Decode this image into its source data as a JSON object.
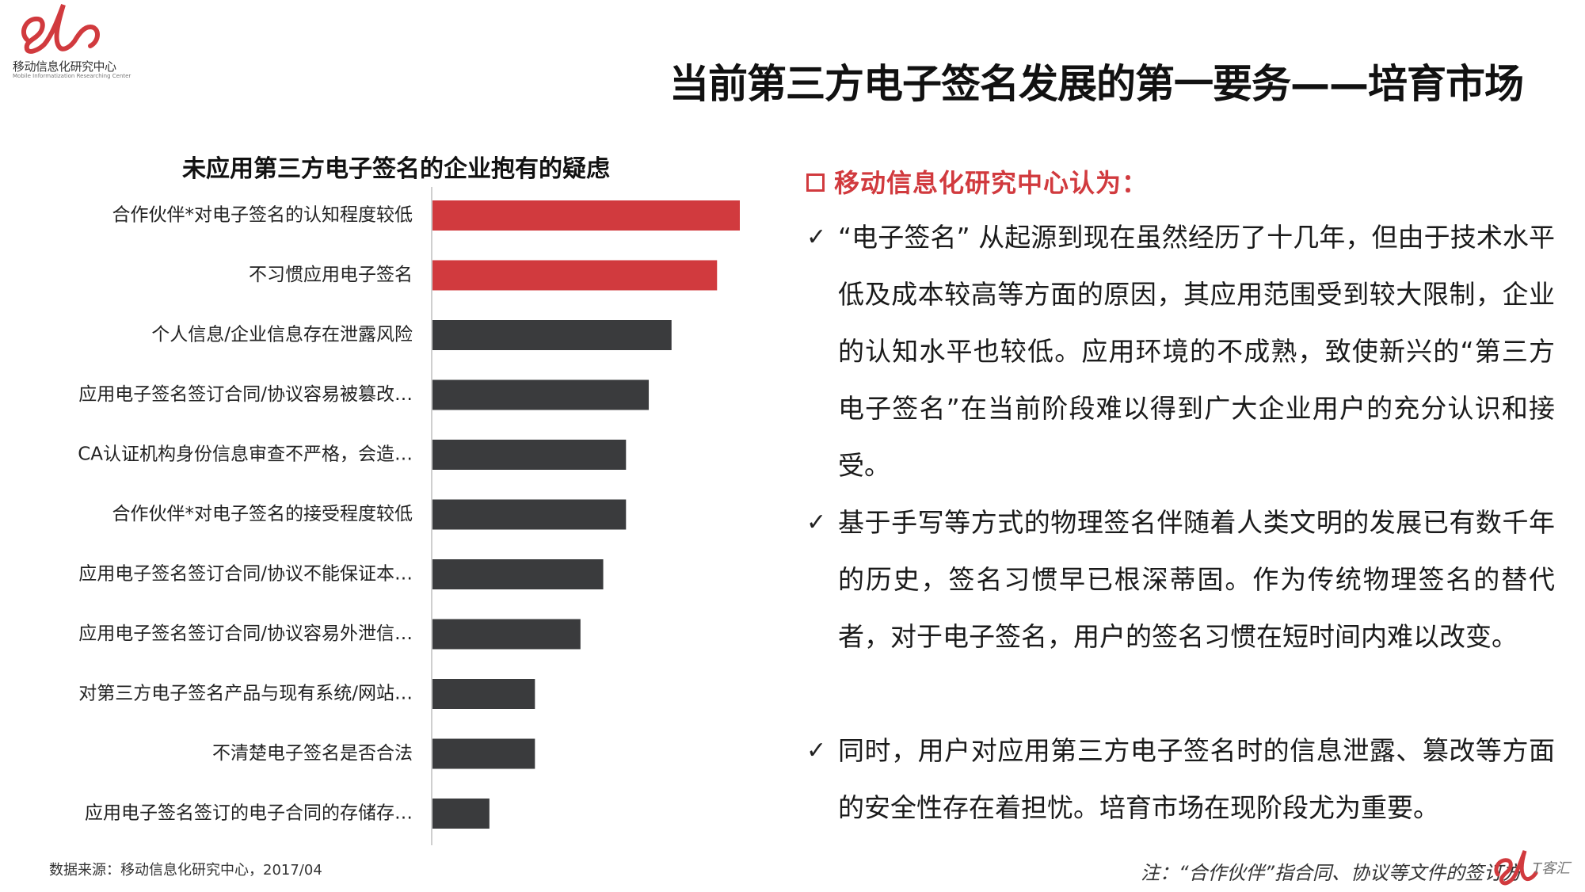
{
  "logo": {
    "name_cn": "移动信息化研究中心",
    "name_en": "Mobile Informatization Researching Center"
  },
  "title": "当前第三方电子签名发展的第一要务——培育市场",
  "chart_data": {
    "type": "bar",
    "orientation": "horizontal",
    "title": "未应用第三方电子签名的企业抱有的疑虑",
    "categories": [
      "合作伙伴*对电子签名的认知程度较低",
      "不习惯应用电子签名",
      "个人信息/企业信息存在泄露风险",
      "应用电子签名签订合同/协议容易被篡改…",
      "CA认证机构身份信息审查不严格，会造…",
      "合作伙伴*对电子签名的接受程度较低",
      "应用电子签名签订合同/协议不能保证本…",
      "应用电子签名签订合同/协议容易外泄信…",
      "对第三方电子签名产品与现有系统/网站…",
      "不清楚电子签名是否合法",
      "应用电子签名签订的电子合同的存储存…"
    ],
    "values": [
      27,
      25,
      21,
      19,
      17,
      17,
      15,
      13,
      9,
      9,
      5
    ],
    "xlim": [
      0,
      27
    ],
    "highlight_count": 2,
    "colors": {
      "highlight": "#d13a3e",
      "default": "#3a3b3d",
      "axis": "#cfcfcf"
    }
  },
  "source": "数据来源：移动信息化研究中心，2017/04",
  "panel": {
    "heading": "移动信息化研究中心认为：",
    "check_mark": "✓",
    "points": [
      "“电子签名” 从起源到现在虽然经历了十几年，但由于技术水平低及成本较高等方面的原因，其应用范围受到较大限制，企业的认知水平也较低。应用环境的不成熟，致使新兴的“第三方电子签名”在当前阶段难以得到广大企业用户的充分认识和接受。",
      "基于手写等方式的物理签名伴随着人类文明的发展已有数千年的历史，签名习惯早已根深蒂固。作为传统物理签名的替代者，对于电子签名，用户的签名习惯在短时间内难以改变。",
      "同时，用户对应用第三方电子签名时的信息泄露、篡改等方面的安全性存在着担忧。培育市场在现阶段尤为重要。"
    ]
  },
  "note": "注：“合作伙伴”指合同、协议等文件的签订方",
  "watermark": {
    "text": "T客汇"
  },
  "colors": {
    "brand_red": "#d13a3e",
    "bar_dark": "#3a3b3d"
  }
}
